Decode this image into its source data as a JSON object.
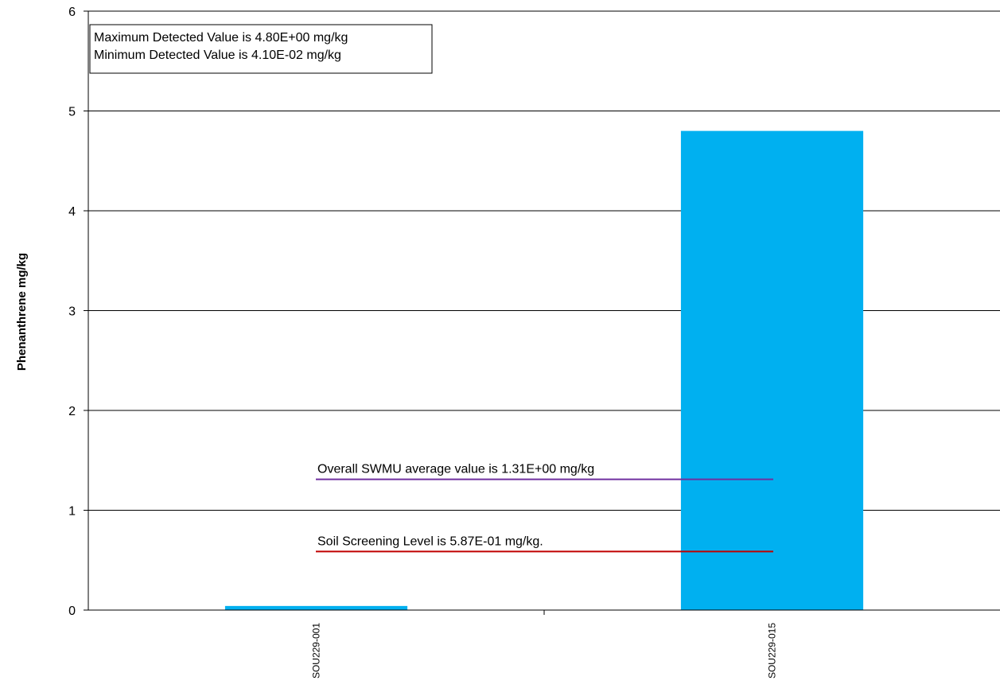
{
  "chart_data": {
    "type": "bar",
    "categories": [
      "SOU229-001",
      "SOU229-015"
    ],
    "values": [
      0.041,
      4.8
    ],
    "ylabel": "Phenanthrene mg/kg",
    "xlabel": "",
    "ylim": [
      0,
      6
    ],
    "yticks": [
      "0",
      "1",
      "2",
      "3",
      "4",
      "5",
      "6"
    ],
    "grid": true,
    "bar_color": "#00B0F0",
    "info_box": {
      "line1": "Maximum  Detected Value is 4.80E+00 mg/kg",
      "line2": "Minimum  Detected Value is 4.10E-02 mg/kg"
    },
    "reference_lines": [
      {
        "label": "Overall SWMU average value is 1.31E+00 mg/kg",
        "value": 1.31,
        "color": "#7030A0"
      },
      {
        "label": "Soil Screening Level is 5.87E-01 mg/kg.",
        "value": 0.587,
        "color": "#C00000"
      }
    ]
  }
}
